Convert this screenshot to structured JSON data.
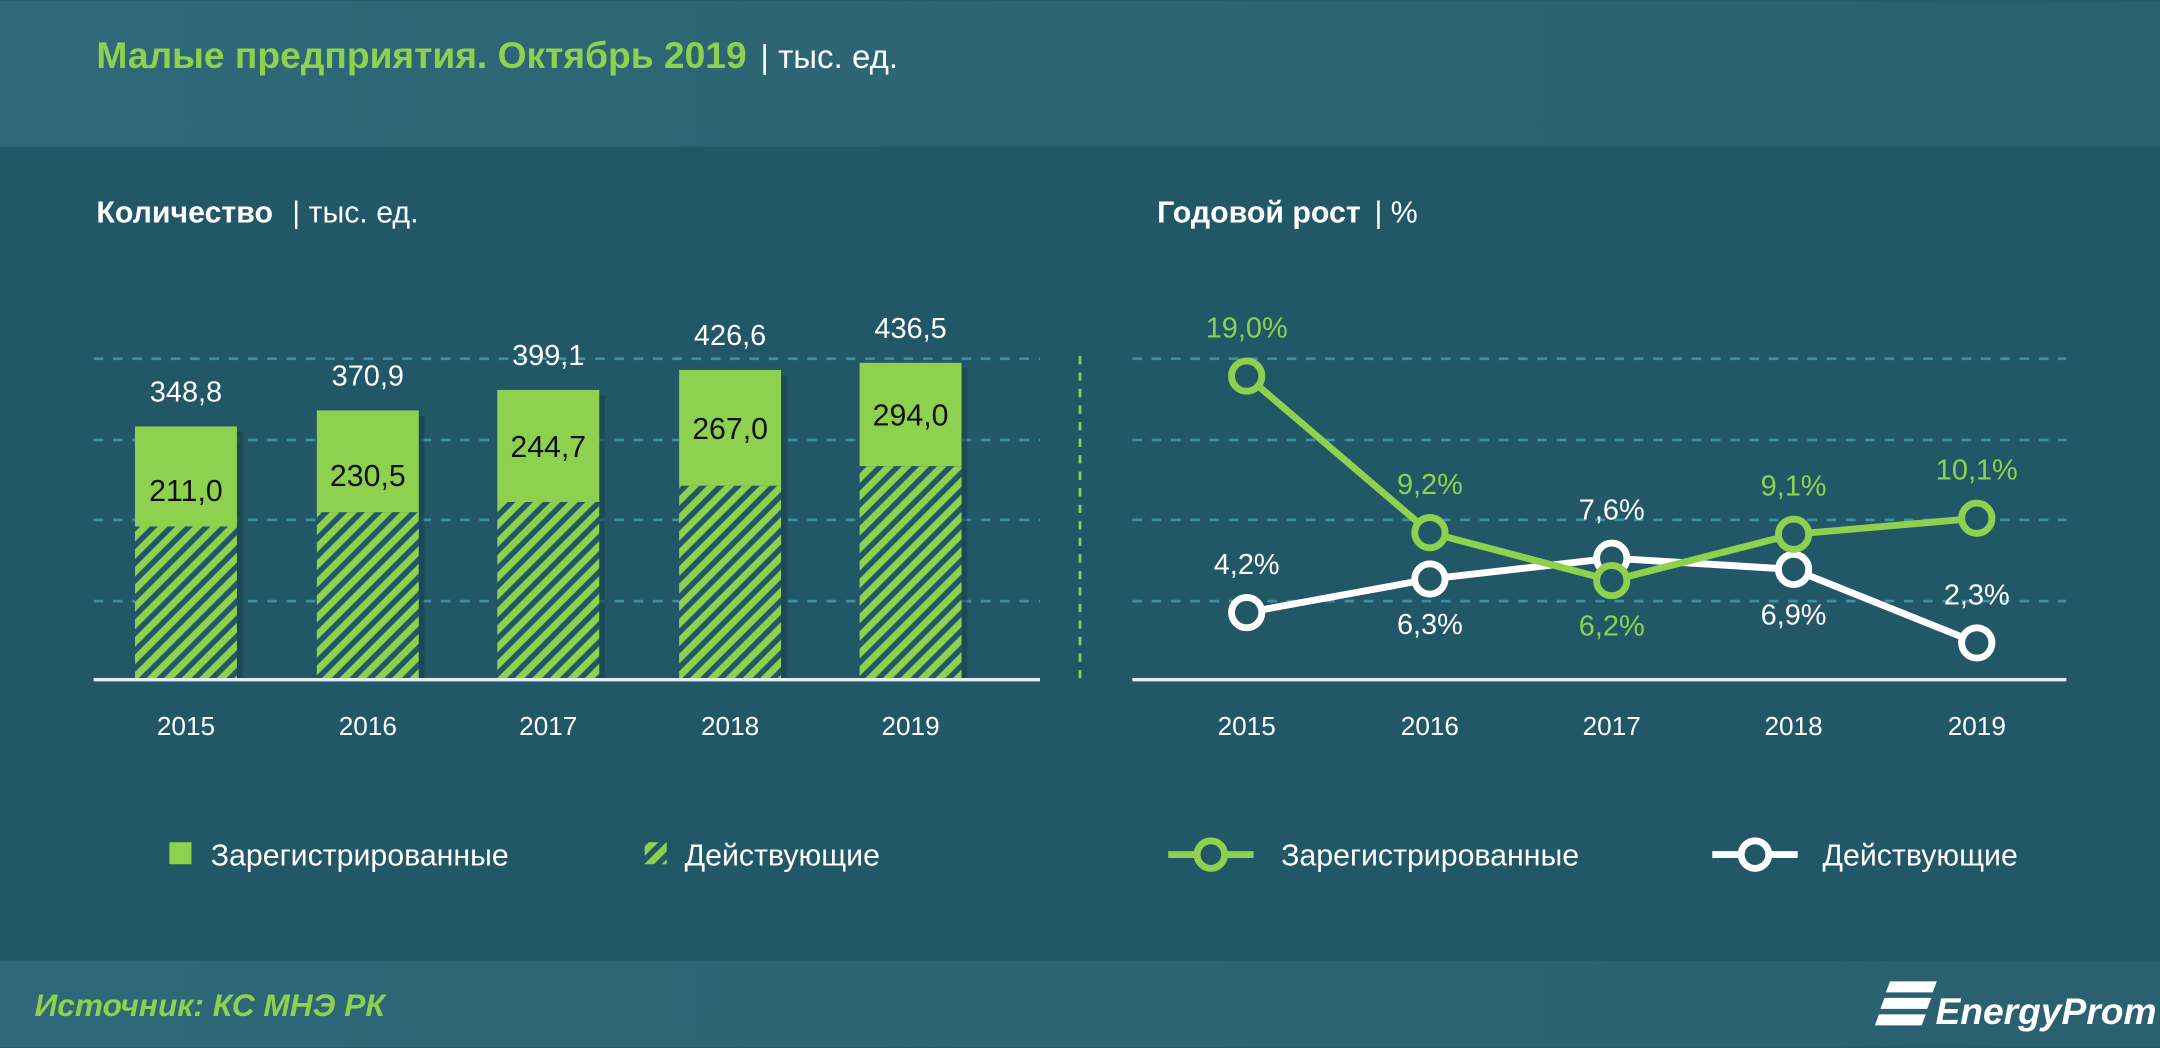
{
  "header": {
    "title": "Малые предприятия. Октябрь 2019",
    "unit": "| тыс. ед."
  },
  "colors": {
    "background": "#215766",
    "header_band": "#2d6575",
    "accent_green": "#8ed14f",
    "white": "#ffffff"
  },
  "chart_data": [
    {
      "type": "bar",
      "title": "Количество",
      "unit": "| тыс. ед.",
      "stacked": true,
      "grid": true,
      "categories": [
        "2015",
        "2016",
        "2017",
        "2018",
        "2019"
      ],
      "series": [
        {
          "name": "Зарегистрированные",
          "values": [
            348.8,
            370.9,
            399.1,
            426.6,
            436.5
          ],
          "labels": [
            "348,8",
            "370,9",
            "399,1",
            "426,6",
            "436,5"
          ],
          "color": "#8ed14f",
          "pattern": "solid"
        },
        {
          "name": "Действующие",
          "values": [
            211.0,
            230.5,
            244.7,
            267.0,
            294.0
          ],
          "labels": [
            "211,0",
            "230,5",
            "244,7",
            "267,0",
            "294,0"
          ],
          "color": "#8ed14f",
          "pattern": "hatched"
        }
      ],
      "legend": "bottom"
    },
    {
      "type": "line",
      "title": "Годовой рост",
      "unit": "| %",
      "grid": true,
      "categories": [
        "2015",
        "2016",
        "2017",
        "2018",
        "2019"
      ],
      "series": [
        {
          "name": "Зарегистрированные",
          "values": [
            19.0,
            9.2,
            6.2,
            9.1,
            10.1
          ],
          "labels": [
            "19,0%",
            "9,2%",
            "6,2%",
            "9,1%",
            "10,1%"
          ],
          "color": "#8ed14f"
        },
        {
          "name": "Действующие",
          "values": [
            4.2,
            6.3,
            7.6,
            6.9,
            2.3
          ],
          "labels": [
            "4,2%",
            "6,3%",
            "7,6%",
            "6,9%",
            "2,3%"
          ],
          "color": "#ffffff"
        }
      ],
      "legend": "bottom"
    }
  ],
  "footer": {
    "source": "Источник: КС МНЭ РК",
    "logo_text": "EnergyProm"
  }
}
